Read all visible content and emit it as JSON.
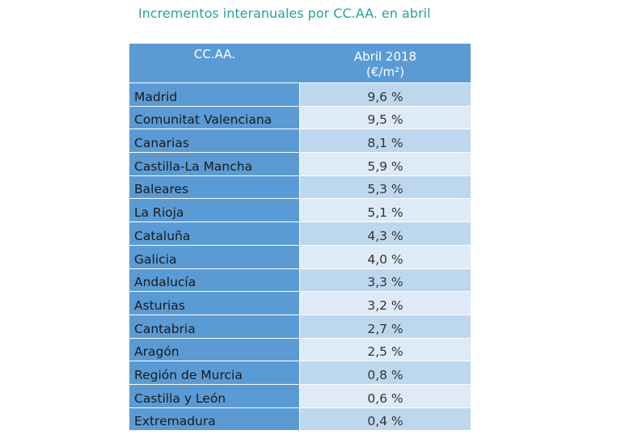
{
  "title": "Incrementos interanuales por CC.AA. en abril",
  "table": {
    "headers": {
      "col1": "CC.AA.",
      "col2_line1": "Abril 2018",
      "col2_line2": "(€/m²)"
    },
    "rows": [
      {
        "region": "Madrid",
        "value": "9,6 %"
      },
      {
        "region": "Comunitat Valenciana",
        "value": "9,5 %"
      },
      {
        "region": "Canarias",
        "value": "8,1 %"
      },
      {
        "region": "Castilla-La Mancha",
        "value": "5,9 %"
      },
      {
        "region": "Baleares",
        "value": "5,3 %"
      },
      {
        "region": "La Rioja",
        "value": "5,1 %"
      },
      {
        "region": "Cataluña",
        "value": "4,3 %"
      },
      {
        "region": "Galicia",
        "value": "4,0 %"
      },
      {
        "region": "Andalucía",
        "value": "3,3 %"
      },
      {
        "region": "Asturias",
        "value": "3,2 %"
      },
      {
        "region": "Cantabria",
        "value": "2,7 %"
      },
      {
        "region": "Aragón",
        "value": "2,5 %"
      },
      {
        "region": "Región de Murcia",
        "value": "0,8 %"
      },
      {
        "region": "Castilla y León",
        "value": "0,6 %"
      },
      {
        "region": "Extremadura",
        "value": "0,4 %"
      }
    ]
  },
  "colors": {
    "title": "#1fa69c",
    "header_bg": "#5b9bd5",
    "row_light": "#deebf7",
    "row_dark": "#bdd7ee"
  }
}
